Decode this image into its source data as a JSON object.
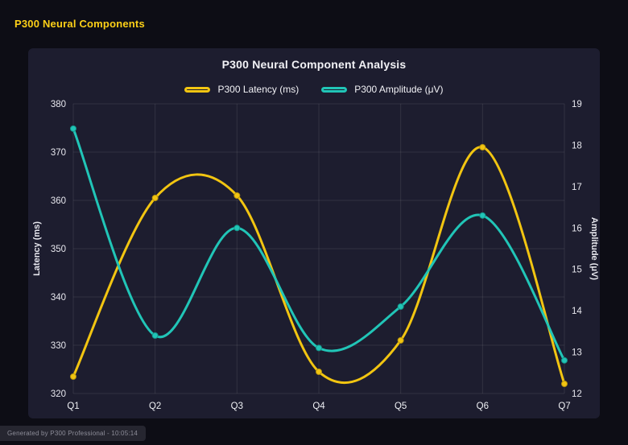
{
  "page": {
    "header": "P300 Neural Components",
    "footer": "Generated by P300 Professional - 10:05:14"
  },
  "colors": {
    "header_text": "#fdd017",
    "background": "#0d0d15",
    "panel": "#1d1d2f",
    "latency_yellow": "#f2c511",
    "amplitude_teal": "#21c5b7",
    "gridline": "rgba(255,255,255,0.09)",
    "tick_text": "#e7e7ee"
  },
  "chart_data": {
    "type": "line",
    "title": "P300 Neural Component Analysis",
    "categories": [
      "Q1",
      "Q2",
      "Q3",
      "Q4",
      "Q5",
      "Q6",
      "Q7"
    ],
    "series": [
      {
        "name": "P300 Latency (ms)",
        "axis": "left",
        "color": "#f2c511",
        "point_border": "#b8950e",
        "values": [
          323.5,
          360.5,
          361,
          324.5,
          331,
          371,
          322
        ]
      },
      {
        "name": "P300 Amplitude (μV)",
        "axis": "right",
        "color": "#21c5b7",
        "point_border": "#14968b",
        "values": [
          18.4,
          13.4,
          16.0,
          13.1,
          14.1,
          16.3,
          12.8
        ]
      }
    ],
    "left_axis": {
      "label": "Latency (ms)",
      "min": 320,
      "max": 380,
      "ticks": [
        320,
        330,
        340,
        350,
        360,
        370,
        380
      ]
    },
    "right_axis": {
      "label": "Amplitude (μV)",
      "min": 12,
      "max": 19,
      "ticks": [
        12,
        13,
        14,
        15,
        16,
        17,
        18,
        19
      ]
    },
    "grid": true,
    "legend_position": "top",
    "line_smoothing": "spline"
  }
}
